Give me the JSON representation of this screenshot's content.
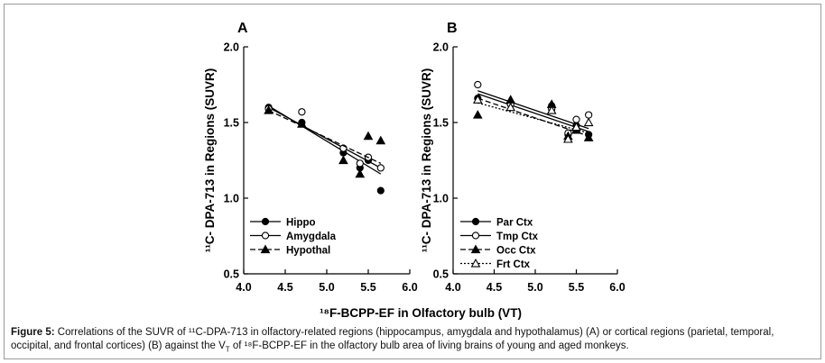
{
  "caption": {
    "label": "Figure 5:",
    "text_line1": "Correlations of the SUVR of ¹¹C-DPA-713 in olfactory-related regions (hippocampus, amygdala and hypothalamus) (A) or cortical regions (parietal, temporal,",
    "text_line2a": "occipital, and frontal cortices) (B) against the V",
    "text_line2_sub": "T",
    "text_line2b": " of ¹⁸F-BCPP-EF in the olfactory bulb area of living brains of young and aged monkeys."
  },
  "shared_xlabel": "¹⁸F-BCPP-EF in Olfactory bulb (VT)",
  "colors": {
    "axis": "#000000",
    "marker": "#000000",
    "frame": "#9a9a9a"
  },
  "chart_data": [
    {
      "type": "scatter",
      "panel_label": "A",
      "ylabel": "¹¹C- DPA-713 in Regions (SUVR)",
      "xlim": [
        4.0,
        6.0
      ],
      "ylim": [
        0.5,
        2.0
      ],
      "xticks": [
        "4.0",
        "4.5",
        "5.0",
        "5.5",
        "6.0"
      ],
      "yticks": [
        "0.5",
        "1.0",
        "1.5",
        "2.0"
      ],
      "legend_position": "bottom-left",
      "series": [
        {
          "name": "Hippo",
          "marker": "filled-circle",
          "line": "solid",
          "x": [
            4.3,
            4.7,
            5.2,
            5.4,
            5.5,
            5.65
          ],
          "y": [
            1.6,
            1.5,
            1.3,
            1.2,
            1.25,
            1.05
          ],
          "fit": [
            [
              4.3,
              1.61
            ],
            [
              5.65,
              1.16
            ]
          ]
        },
        {
          "name": "Amygdala",
          "marker": "open-circle",
          "line": "solid",
          "x": [
            4.3,
            4.7,
            5.2,
            5.4,
            5.5,
            5.65
          ],
          "y": [
            1.59,
            1.57,
            1.33,
            1.23,
            1.27,
            1.2
          ],
          "fit": [
            [
              4.3,
              1.6
            ],
            [
              5.65,
              1.2
            ]
          ]
        },
        {
          "name": "Hypothal",
          "marker": "filled-triangle",
          "line": "dashed",
          "x": [
            4.3,
            4.7,
            5.2,
            5.4,
            5.5,
            5.65
          ],
          "y": [
            1.58,
            1.49,
            1.25,
            1.16,
            1.41,
            1.38
          ],
          "fit": [
            [
              4.3,
              1.58
            ],
            [
              5.65,
              1.23
            ]
          ]
        }
      ]
    },
    {
      "type": "scatter",
      "panel_label": "B",
      "ylabel": "¹¹C- DPA-713 in Regions (SUVR)",
      "xlim": [
        4.0,
        6.0
      ],
      "ylim": [
        0.5,
        2.0
      ],
      "xticks": [
        "4.0",
        "4.5",
        "5.0",
        "5.5",
        "6.0"
      ],
      "yticks": [
        "0.5",
        "1.0",
        "1.5",
        "2.0"
      ],
      "legend_position": "bottom-left",
      "series": [
        {
          "name": "Par Ctx",
          "marker": "filled-circle",
          "line": "solid",
          "x": [
            4.3,
            4.7,
            5.2,
            5.4,
            5.5,
            5.65
          ],
          "y": [
            1.66,
            1.63,
            1.61,
            1.42,
            1.48,
            1.42
          ],
          "fit": [
            [
              4.3,
              1.69
            ],
            [
              5.65,
              1.44
            ]
          ]
        },
        {
          "name": "Tmp Ctx",
          "marker": "open-circle",
          "line": "solid",
          "x": [
            4.3,
            4.7,
            5.2,
            5.4,
            5.5,
            5.65
          ],
          "y": [
            1.75,
            1.62,
            1.59,
            1.43,
            1.52,
            1.55
          ],
          "fit": [
            [
              4.3,
              1.71
            ],
            [
              5.65,
              1.46
            ]
          ]
        },
        {
          "name": "Occ Ctx",
          "marker": "filled-triangle",
          "line": "dashed",
          "x": [
            4.3,
            4.7,
            5.2,
            5.4,
            5.5,
            5.65
          ],
          "y": [
            1.55,
            1.65,
            1.62,
            1.41,
            1.45,
            1.4
          ],
          "fit": [
            [
              4.3,
              1.66
            ],
            [
              5.65,
              1.41
            ]
          ]
        },
        {
          "name": "Frt Ctx",
          "marker": "open-triangle",
          "line": "dotted",
          "x": [
            4.3,
            4.7,
            5.2,
            5.4,
            5.5,
            5.65
          ],
          "y": [
            1.65,
            1.6,
            1.58,
            1.39,
            1.47,
            1.5
          ],
          "fit": [
            [
              4.3,
              1.63
            ],
            [
              5.65,
              1.43
            ]
          ]
        }
      ]
    }
  ]
}
